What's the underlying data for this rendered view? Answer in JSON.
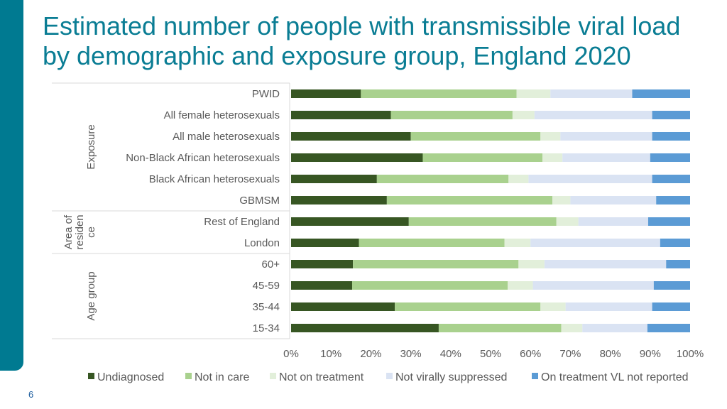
{
  "slide": {
    "title_line1": "Estimated number of people with transmissible viral load",
    "title_line2": "by demographic and exposure group, England 2020",
    "page_number": "6"
  },
  "chart_data": {
    "type": "bar",
    "orientation": "horizontal",
    "stacked": "percent",
    "categories": [
      "PWID",
      "All female heterosexuals",
      "All male heterosexuals",
      "Non-Black African heterosexuals",
      "Black African heterosexuals",
      "GBMSM",
      "Rest of England",
      "London",
      "60+",
      "45-59",
      "35-44",
      "15-34"
    ],
    "groups": [
      {
        "label": "Exposure",
        "categories": [
          "PWID",
          "All female heterosexuals",
          "All male heterosexuals",
          "Non-Black African heterosexuals",
          "Black African heterosexuals",
          "GBMSM"
        ]
      },
      {
        "label": "Area of residence",
        "label_lines": [
          "Area of",
          "residen",
          "ce"
        ],
        "categories": [
          "Rest of England",
          "London"
        ]
      },
      {
        "label": "Age group",
        "categories": [
          "60+",
          "45-59",
          "35-44",
          "15-34"
        ]
      }
    ],
    "series": [
      {
        "name": "Undiagnosed",
        "color": "#375623",
        "values": [
          17.5,
          25,
          30,
          33,
          21.5,
          24,
          29.5,
          17,
          15.5,
          15.3,
          26,
          37
        ]
      },
      {
        "name": "Not in care",
        "color": "#A9D18E",
        "values": [
          39,
          30.5,
          32.5,
          30,
          33,
          41.5,
          37,
          36.5,
          41.5,
          39,
          36.5,
          30.7
        ]
      },
      {
        "name": "Not on treatment",
        "color": "#E2EFDA",
        "values": [
          8.5,
          5.5,
          5,
          5,
          5,
          4.5,
          5.5,
          6.5,
          6.5,
          6.3,
          6.3,
          5.3
        ]
      },
      {
        "name": "Not virally suppressed",
        "color": "#DAE3F3",
        "values": [
          20.5,
          29.5,
          23,
          22,
          31,
          21.5,
          17.5,
          32.5,
          30.5,
          30.3,
          21.7,
          16.3
        ]
      },
      {
        "name": "On treatment VL not reported",
        "color": "#5B9BD5",
        "values": [
          14.5,
          9.5,
          9.5,
          10,
          9.5,
          8.5,
          10.5,
          7.5,
          6,
          9.1,
          9.5,
          10.7
        ]
      }
    ],
    "xlim": [
      0,
      100
    ],
    "xticks": [
      "0%",
      "10%",
      "20%",
      "30%",
      "40%",
      "50%",
      "60%",
      "70%",
      "80%",
      "90%",
      "100%"
    ],
    "legend_position": "bottom",
    "grid": false
  }
}
